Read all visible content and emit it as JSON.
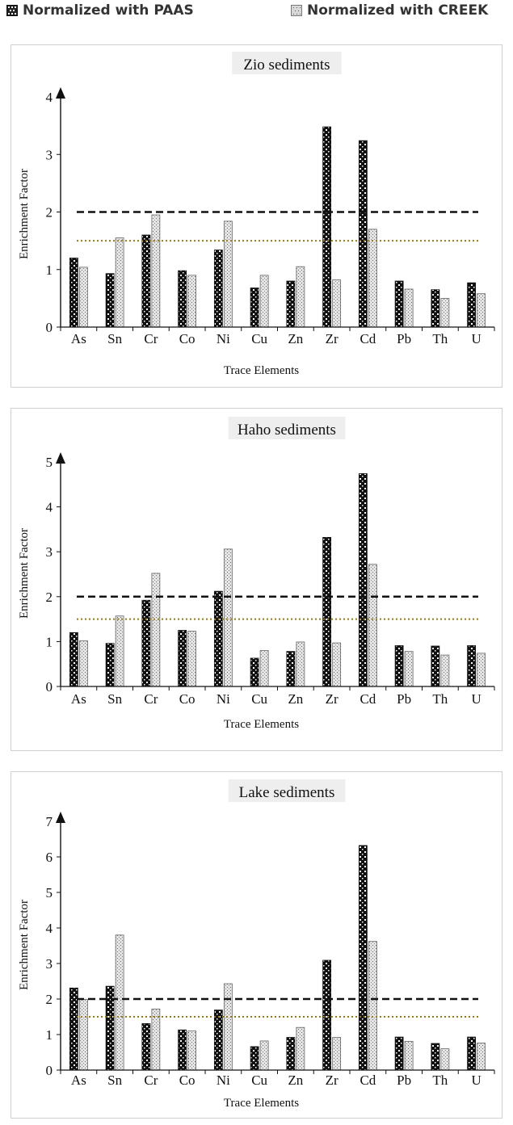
{
  "legend": {
    "paas": "Normalized with PAAS",
    "creek": "Normalized with CREEK"
  },
  "colors": {
    "paas_fill": "#111111",
    "creek_fill": "#bbbbbb",
    "threshold_2": "#111111",
    "threshold_15": "#9a7a10",
    "title_bg": "#eeeeee"
  },
  "chart_data": [
    {
      "type": "bar",
      "title": "Zio sediments",
      "xlabel": "Trace Elements",
      "ylabel": "Enrichment Factor",
      "ylim": [
        0,
        4
      ],
      "yticks": [
        "0",
        "1",
        "2",
        "3",
        "4"
      ],
      "categories": [
        "As",
        "Sn",
        "Cr",
        "Co",
        "Ni",
        "Cu",
        "Zn",
        "Zr",
        "Cd",
        "Pb",
        "Th",
        "U"
      ],
      "series": [
        {
          "name": "Normalized with PAAS",
          "values": [
            1.2,
            0.93,
            1.6,
            0.98,
            1.34,
            0.68,
            0.8,
            3.48,
            3.24,
            0.8,
            0.65,
            0.77
          ]
        },
        {
          "name": "Normalized with CREEK",
          "values": [
            1.04,
            1.55,
            1.95,
            0.9,
            1.84,
            0.9,
            1.05,
            0.82,
            1.7,
            0.66,
            0.5,
            0.58
          ]
        }
      ],
      "reference_lines": [
        2,
        1.5
      ]
    },
    {
      "type": "bar",
      "title": "Haho sediments",
      "xlabel": "Trace Elements",
      "ylabel": "Enrichment Factor",
      "ylim": [
        0,
        5
      ],
      "yticks": [
        "0",
        "1",
        "2",
        "3",
        "4",
        "5"
      ],
      "categories": [
        "As",
        "Sn",
        "Cr",
        "Co",
        "Ni",
        "Cu",
        "Zn",
        "Zr",
        "Cd",
        "Pb",
        "Th",
        "U"
      ],
      "series": [
        {
          "name": "Normalized with PAAS",
          "values": [
            1.2,
            0.96,
            1.92,
            1.25,
            2.12,
            0.63,
            0.78,
            3.32,
            4.74,
            0.91,
            0.9,
            0.91
          ]
        },
        {
          "name": "Normalized with CREEK",
          "values": [
            1.02,
            1.57,
            2.52,
            1.23,
            3.06,
            0.8,
            0.99,
            0.97,
            2.72,
            0.78,
            0.7,
            0.74
          ]
        }
      ],
      "reference_lines": [
        2,
        1.5
      ]
    },
    {
      "type": "bar",
      "title": "Lake sediments",
      "xlabel": "Trace Elements",
      "ylabel": "Enrichment Factor",
      "ylim": [
        0,
        7
      ],
      "yticks": [
        "0",
        "1",
        "2",
        "3",
        "4",
        "5",
        "6",
        "7"
      ],
      "categories": [
        "As",
        "Sn",
        "Cr",
        "Co",
        "Ni",
        "Cu",
        "Zn",
        "Zr",
        "Cd",
        "Pb",
        "Th",
        "U"
      ],
      "series": [
        {
          "name": "Normalized with PAAS",
          "values": [
            2.31,
            2.36,
            1.31,
            1.13,
            1.69,
            0.66,
            0.92,
            3.09,
            6.32,
            0.93,
            0.75,
            0.93
          ]
        },
        {
          "name": "Normalized with CREEK",
          "values": [
            1.99,
            3.8,
            1.72,
            1.1,
            2.43,
            0.82,
            1.2,
            0.92,
            3.62,
            0.81,
            0.6,
            0.76
          ]
        }
      ],
      "reference_lines": [
        2,
        1.5
      ]
    }
  ]
}
